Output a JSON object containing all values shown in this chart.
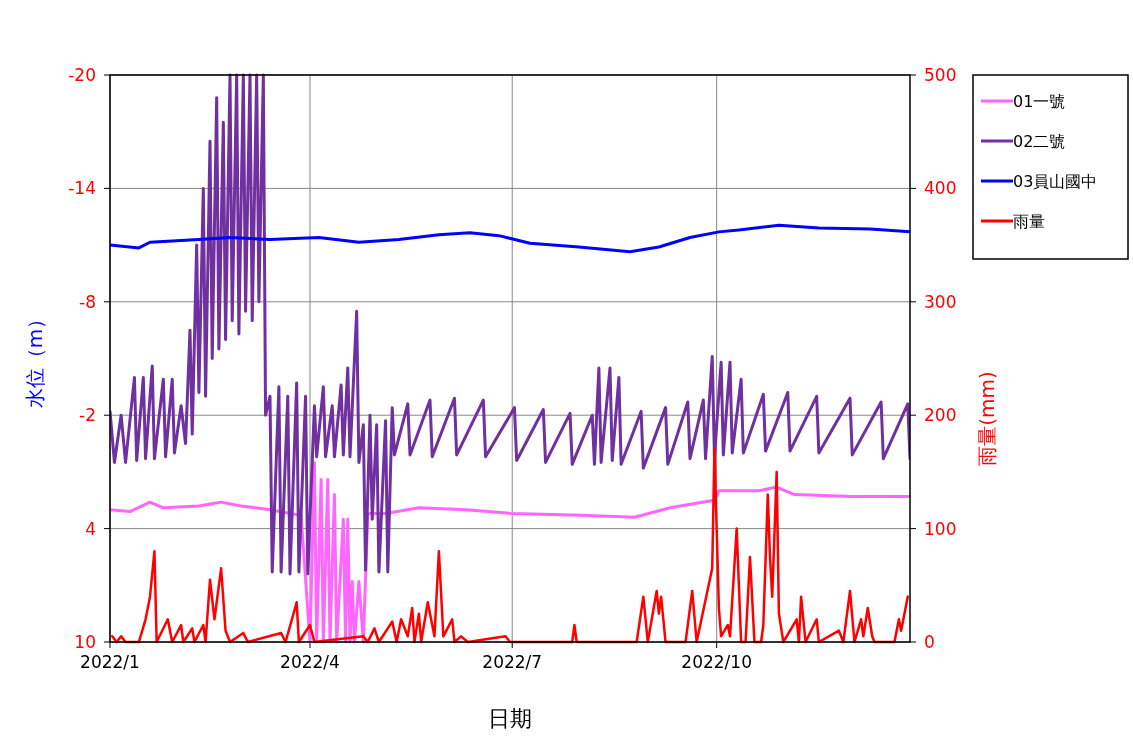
{
  "chart_data": {
    "type": "line",
    "xlabel": "日期",
    "ylabel": "水位（m）",
    "y2label": "雨量(mm)",
    "xlim": [
      "2022-01-01",
      "2022-12-27"
    ],
    "xticks": [
      {
        "value": "2022-01-01",
        "label": "2022/1"
      },
      {
        "value": "2022-04-01",
        "label": "2022/4"
      },
      {
        "value": "2022-07-01",
        "label": "2022/7"
      },
      {
        "value": "2022-10-01",
        "label": "2022/10"
      }
    ],
    "ylim": [
      10,
      -20
    ],
    "yticks": [
      -20,
      -14,
      -8,
      -2,
      4,
      10
    ],
    "y2lim": [
      0,
      500
    ],
    "y2ticks": [
      0,
      100,
      200,
      300,
      400,
      500
    ],
    "grid": true,
    "legend": "right",
    "series": [
      {
        "name": "01一號",
        "color": "#ff66ff",
        "x": [
          "2022-01-01",
          "2022-01-10",
          "2022-01-19",
          "2022-01-25",
          "2022-02-10",
          "2022-02-20",
          "2022-03-01",
          "2022-03-14",
          "2022-03-28",
          "2022-04-01",
          "2022-04-03",
          "2022-04-04",
          "2022-04-06",
          "2022-04-07",
          "2022-04-09",
          "2022-04-10",
          "2022-04-12",
          "2022-04-13",
          "2022-04-16",
          "2022-04-17",
          "2022-04-18",
          "2022-04-19",
          "2022-04-20",
          "2022-04-21",
          "2022-04-23",
          "2022-04-25",
          "2022-04-27",
          "2022-05-05",
          "2022-05-20",
          "2022-06-10",
          "2022-07-01",
          "2022-08-01",
          "2022-08-25",
          "2022-09-10",
          "2022-09-30",
          "2022-10-02",
          "2022-10-20",
          "2022-10-28",
          "2022-11-05",
          "2022-12-01",
          "2022-12-27"
        ],
        "values": [
          3.0,
          3.1,
          2.6,
          2.9,
          2.8,
          2.6,
          2.8,
          3.0,
          3.3,
          10,
          0.5,
          10,
          1.4,
          10,
          1.4,
          10,
          2.2,
          10,
          3.5,
          10,
          3.5,
          10,
          6.8,
          10,
          6.8,
          10,
          3.2,
          3.2,
          2.9,
          3.0,
          3.2,
          3.3,
          3.4,
          2.9,
          2.5,
          2.0,
          2.0,
          1.8,
          2.2,
          2.3,
          2.3
        ]
      },
      {
        "name": "02二號",
        "color": "#7030a0",
        "x": [
          "2022-01-01",
          "2022-01-03",
          "2022-01-06",
          "2022-01-08",
          "2022-01-12",
          "2022-01-13",
          "2022-01-16",
          "2022-01-17",
          "2022-01-20",
          "2022-01-21",
          "2022-01-25",
          "2022-01-26",
          "2022-01-29",
          "2022-01-30",
          "2022-02-02",
          "2022-02-04",
          "2022-02-06",
          "2022-02-07",
          "2022-02-09",
          "2022-02-10",
          "2022-02-12",
          "2022-02-13",
          "2022-02-15",
          "2022-02-16",
          "2022-02-18",
          "2022-02-19",
          "2022-02-21",
          "2022-02-22",
          "2022-02-24",
          "2022-02-25",
          "2022-02-27",
          "2022-02-28",
          "2022-03-02",
          "2022-03-03",
          "2022-03-05",
          "2022-03-06",
          "2022-03-08",
          "2022-03-09",
          "2022-03-11",
          "2022-03-12",
          "2022-03-14",
          "2022-03-15",
          "2022-03-18",
          "2022-03-19",
          "2022-03-22",
          "2022-03-23",
          "2022-03-26",
          "2022-03-27",
          "2022-03-30",
          "2022-03-31",
          "2022-04-03",
          "2022-04-04",
          "2022-04-07",
          "2022-04-08",
          "2022-04-11",
          "2022-04-12",
          "2022-04-15",
          "2022-04-16",
          "2022-04-18",
          "2022-04-19",
          "2022-04-22",
          "2022-04-23",
          "2022-04-25",
          "2022-04-26",
          "2022-04-28",
          "2022-04-29",
          "2022-05-01",
          "2022-05-02",
          "2022-05-05",
          "2022-05-06",
          "2022-05-08",
          "2022-05-09",
          "2022-05-15",
          "2022-05-16",
          "2022-05-25",
          "2022-05-26",
          "2022-06-05",
          "2022-06-06",
          "2022-06-18",
          "2022-06-19",
          "2022-07-02",
          "2022-07-03",
          "2022-07-15",
          "2022-07-16",
          "2022-07-27",
          "2022-07-28",
          "2022-08-06",
          "2022-08-07",
          "2022-08-09",
          "2022-08-10",
          "2022-08-14",
          "2022-08-15",
          "2022-08-18",
          "2022-08-19",
          "2022-08-28",
          "2022-08-29",
          "2022-09-08",
          "2022-09-09",
          "2022-09-18",
          "2022-09-19",
          "2022-09-25",
          "2022-09-26",
          "2022-09-29",
          "2022-09-30",
          "2022-10-03",
          "2022-10-04",
          "2022-10-07",
          "2022-10-08",
          "2022-10-12",
          "2022-10-13",
          "2022-10-22",
          "2022-10-23",
          "2022-11-02",
          "2022-11-03",
          "2022-11-15",
          "2022-11-16",
          "2022-11-30",
          "2022-12-01",
          "2022-12-14",
          "2022-12-15",
          "2022-12-26",
          "2022-12-27"
        ],
        "values": [
          -2.2,
          0.5,
          -2.0,
          0.5,
          -4.0,
          0.4,
          -4.0,
          0.3,
          -4.6,
          0.3,
          -3.9,
          0.2,
          -3.9,
          0.0,
          -2.5,
          -0.5,
          -6.5,
          -1.0,
          -11.0,
          -3.2,
          -14.0,
          -3.0,
          -16.5,
          -5.0,
          -18.8,
          -5.5,
          -17.5,
          -6.0,
          -20,
          -7.0,
          -20,
          -6.3,
          -20,
          -7.5,
          -20,
          -7.0,
          -20,
          -8.0,
          -20,
          -2.0,
          -3.0,
          6.3,
          -3.5,
          6.3,
          -3.0,
          6.4,
          -3.7,
          6.3,
          -3.0,
          6.4,
          -2.5,
          0.2,
          -3.5,
          0.2,
          -2.5,
          0.2,
          -3.6,
          0.1,
          -4.5,
          0.2,
          -7.5,
          0.5,
          -1.5,
          6.2,
          -2.0,
          3.5,
          -1.5,
          6.3,
          -1.7,
          6.3,
          -2.4,
          0.1,
          -2.6,
          0.1,
          -2.8,
          0.2,
          -2.9,
          0.1,
          -2.8,
          0.2,
          -2.4,
          0.4,
          -2.3,
          0.5,
          -2.1,
          0.6,
          -2.0,
          0.6,
          -4.5,
          0.5,
          -4.5,
          0.4,
          -4.0,
          0.6,
          -2.2,
          0.8,
          -2.4,
          0.6,
          -2.7,
          0.3,
          -2.8,
          0.3,
          -5.1,
          0.2,
          -4.8,
          0.1,
          -4.8,
          0.0,
          -3.9,
          0.0,
          -3.1,
          -0.1,
          -3.2,
          -0.1,
          -3.0,
          0.0,
          -2.9,
          0.1,
          -2.7,
          0.3,
          -2.6,
          0.3
        ]
      },
      {
        "name": "03員山國中",
        "color": "#0000ff",
        "x": [
          "2022-01-01",
          "2022-01-14",
          "2022-01-19",
          "2022-02-10",
          "2022-02-24",
          "2022-03-14",
          "2022-04-05",
          "2022-04-23",
          "2022-05-11",
          "2022-05-29",
          "2022-06-12",
          "2022-06-25",
          "2022-07-09",
          "2022-07-31",
          "2022-08-23",
          "2022-09-05",
          "2022-09-19",
          "2022-10-02",
          "2022-10-11",
          "2022-10-29",
          "2022-11-16",
          "2022-12-09",
          "2022-12-27"
        ],
        "values": [
          -11.0,
          -10.85,
          -11.15,
          -11.3,
          -11.4,
          -11.3,
          -11.4,
          -11.15,
          -11.3,
          -11.55,
          -11.65,
          -11.5,
          -11.1,
          -10.9,
          -10.65,
          -10.9,
          -11.4,
          -11.7,
          -11.8,
          -12.05,
          -11.9,
          -11.85,
          -11.7
        ]
      },
      {
        "name": "雨量",
        "color": "#ff0000",
        "axis": "y2",
        "x": [
          "2022-01-02",
          "2022-01-04",
          "2022-01-06",
          "2022-01-08",
          "2022-01-14",
          "2022-01-17",
          "2022-01-19",
          "2022-01-21",
          "2022-01-22",
          "2022-01-27",
          "2022-01-29",
          "2022-02-02",
          "2022-02-03",
          "2022-02-07",
          "2022-02-08",
          "2022-02-12",
          "2022-02-13",
          "2022-02-15",
          "2022-02-17",
          "2022-02-20",
          "2022-02-22",
          "2022-02-24",
          "2022-03-02",
          "2022-03-04",
          "2022-03-19",
          "2022-03-21",
          "2022-03-26",
          "2022-03-27",
          "2022-04-01",
          "2022-04-03",
          "2022-04-25",
          "2022-04-27",
          "2022-04-30",
          "2022-05-02",
          "2022-05-08",
          "2022-05-10",
          "2022-05-12",
          "2022-05-15",
          "2022-05-17",
          "2022-05-18",
          "2022-05-20",
          "2022-05-21",
          "2022-05-24",
          "2022-05-27",
          "2022-05-29",
          "2022-05-31",
          "2022-06-04",
          "2022-06-05",
          "2022-06-08",
          "2022-06-11",
          "2022-06-28",
          "2022-06-30",
          "2022-07-28",
          "2022-07-29",
          "2022-07-30",
          "2022-08-26",
          "2022-08-29",
          "2022-08-31",
          "2022-09-04",
          "2022-09-05",
          "2022-09-06",
          "2022-09-08",
          "2022-09-17",
          "2022-09-20",
          "2022-09-22",
          "2022-09-29",
          "2022-09-30",
          "2022-10-02",
          "2022-10-03",
          "2022-10-06",
          "2022-10-07",
          "2022-10-10",
          "2022-10-12",
          "2022-10-14",
          "2022-10-16",
          "2022-10-18",
          "2022-10-21",
          "2022-10-22",
          "2022-10-24",
          "2022-10-25",
          "2022-10-26",
          "2022-10-28",
          "2022-10-29",
          "2022-10-31",
          "2022-11-06",
          "2022-11-07",
          "2022-11-08",
          "2022-11-10",
          "2022-11-15",
          "2022-11-16",
          "2022-11-25",
          "2022-11-27",
          "2022-11-30",
          "2022-12-02",
          "2022-12-05",
          "2022-12-06",
          "2022-12-08",
          "2022-12-10",
          "2022-12-11",
          "2022-12-20",
          "2022-12-22",
          "2022-12-23",
          "2022-12-26"
        ],
        "values": [
          5,
          0,
          5,
          0,
          0,
          20,
          40,
          80,
          0,
          20,
          0,
          15,
          0,
          12,
          0,
          15,
          0,
          55,
          20,
          65,
          10,
          0,
          8,
          0,
          8,
          0,
          35,
          0,
          15,
          0,
          5,
          0,
          12,
          0,
          18,
          0,
          20,
          5,
          30,
          0,
          25,
          0,
          35,
          5,
          80,
          5,
          20,
          0,
          5,
          0,
          5,
          0,
          0,
          15,
          0,
          0,
          40,
          0,
          45,
          25,
          40,
          0,
          0,
          45,
          0,
          65,
          170,
          30,
          5,
          15,
          5,
          100,
          0,
          0,
          75,
          0,
          0,
          15,
          130,
          75,
          40,
          150,
          25,
          0,
          20,
          0,
          40,
          0,
          20,
          0,
          10,
          0,
          45,
          0,
          20,
          5,
          30,
          5,
          0,
          0,
          20,
          10,
          40
        ]
      }
    ]
  }
}
